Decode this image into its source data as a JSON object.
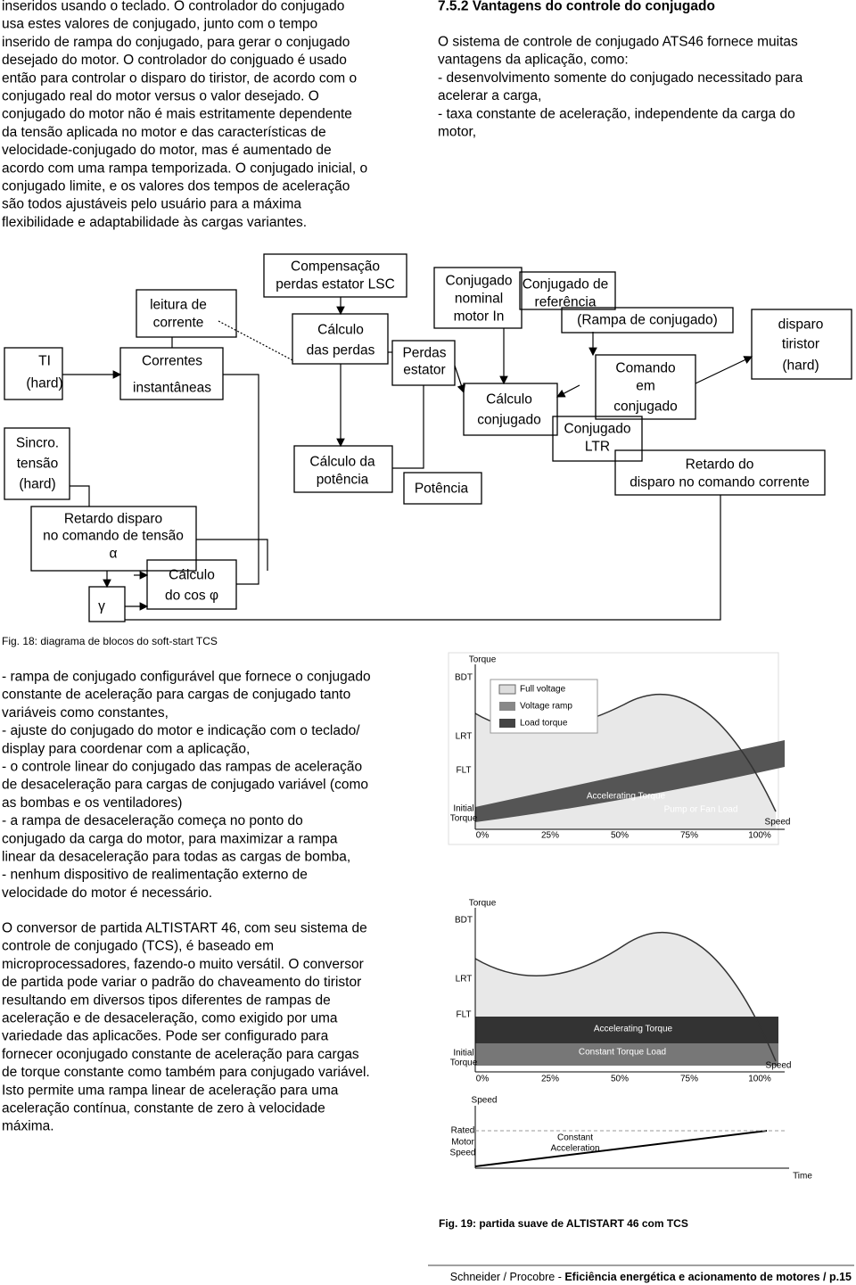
{
  "intro": {
    "lines": [
      "inseridos usando o teclado. O controlador do conjugado",
      "usa estes valores de conjugado, junto com o tempo",
      "inserido de rampa do conjugado, para gerar o conjugado",
      "desejado do motor. O controlador do conjguado é usado",
      "então para controlar o disparo do tiristor, de acordo com o",
      "conjugado real do motor versus o valor desejado. O",
      "conjugado do motor não é mais estritamente dependente",
      "da tensão aplicada no motor e das características de",
      "velocidade-conjugado do motor, mas é aumentado de",
      "acordo com uma rampa temporizada. O conjugado inicial, o",
      "conjugado limite, e os valores dos tempos de aceleração",
      "são todos ajustáveis pelo usuário para a máxima",
      "flexibilidade e adaptabilidade às cargas variantes."
    ]
  },
  "section": {
    "heading": "7.5.2  Vantagens do controle do conjugado",
    "lines": [
      "O sistema de controle de conjugado ATS46 fornece muitas",
      "vantagens da aplicação, como:",
      "- desenvolvimento somente do conjugado necessitado para",
      "acelerar a carga,",
      "- taxa constante de aceleração, independente da carga do",
      "motor,"
    ]
  },
  "diagram": {
    "nodes": [
      {
        "lines": [
          "TI",
          "(hard)"
        ]
      },
      {
        "lines": [
          "Sincro.",
          "tensão",
          "(hard)"
        ]
      },
      {
        "lines": [
          "leitura de",
          "corrente"
        ]
      },
      {
        "lines": [
          "Correntes",
          "instantâneas"
        ]
      },
      {
        "lines": [
          "Compensação",
          "perdas estator LSC"
        ]
      },
      {
        "lines": [
          "Cálculo",
          "das perdas"
        ]
      },
      {
        "lines": [
          "Perdas",
          "estator"
        ]
      },
      {
        "lines": [
          "Conjugado",
          "nominal",
          "motor In"
        ]
      },
      {
        "lines": [
          "Conjugado de",
          "referência"
        ]
      },
      {
        "lines": [
          "(Rampa  de conjugado)"
        ]
      },
      {
        "lines": [
          "disparo",
          "tiristor",
          "(hard)"
        ]
      },
      {
        "lines": [
          "Comando",
          "em",
          "conjugado"
        ]
      },
      {
        "lines": [
          "Cálculo",
          "conjugado"
        ]
      },
      {
        "lines": [
          "Conjugado",
          "LTR"
        ]
      },
      {
        "lines": [
          "Retardo do",
          "disparo no comando corrente"
        ]
      },
      {
        "lines": [
          "Cálculo da",
          "potência"
        ]
      },
      {
        "lines": [
          "Potência"
        ]
      },
      {
        "lines": [
          "Retardo disparo",
          "no comando de tensão",
          "α"
        ]
      },
      {
        "lines": [
          "Cálculo",
          "do cos φ"
        ]
      },
      {
        "lines": [
          "γ"
        ]
      }
    ],
    "caption": "Fig. 18: diagrama de blocos do soft-start TCS"
  },
  "body": {
    "paragraphs": [
      {
        "lines": [
          "- rampa de conjugado configurável que fornece o conjugado",
          "constante de aceleração para cargas de conjugado tanto",
          "variáveis como constantes,",
          "- ajuste do conjugado do motor e indicação com o teclado/",
          "display para coordenar com a aplicação,",
          "- o controle linear do conjugado das rampas de aceleração",
          "de desaceleração para cargas de conjugado variável (como",
          "as bombas e os ventiladores)",
          "- a rampa de desaceleração começa no ponto do",
          "conjugado da carga do motor, para maximizar a rampa",
          "linear da desaceleração para todas as cargas de bomba,",
          "- nenhum dispositivo de realimentação externo de",
          "velocidade do motor é necessário."
        ]
      },
      {
        "lines": [
          "O conversor de partida ALTISTART 46, com seu sistema de",
          "controle de conjugado (TCS), é baseado em",
          "microprocessadores, fazendo-o muito versátil. O conversor",
          "de partida pode variar o padrão do chaveamento do tiristor",
          "resultando em diversos tipos diferentes de rampas de",
          "aceleração e de desaceleração, como exigido por uma",
          "variedade das aplicacões. Pode ser configurado para",
          "fornecer oconjugado constante de aceleração para cargas",
          "de torque constante como também para conjugado variável.",
          "Isto permite uma rampa linear de aceleração para uma",
          "aceleração contínua, constante de zero à velocidade",
          "máxima."
        ]
      }
    ]
  },
  "figure": {
    "charts": [
      {
        "texts": [
          "Torque",
          "BDT",
          "LRT",
          "FLT",
          "Initial",
          "Torque",
          "0%",
          "25%",
          "50%",
          "75%",
          "100%",
          "Speed",
          "Full voltage",
          "Voltage ramp",
          "Load torque",
          "Accelerating Torque",
          "Pump or Fan Load"
        ]
      },
      {
        "texts": [
          "Torque",
          "BDT",
          "LRT",
          "FLT",
          "Initial",
          "Torque",
          "0%",
          "25%",
          "50%",
          "75%",
          "100%",
          "Speed",
          "Accelerating Torque",
          "Constant Torque Load"
        ]
      },
      {
        "texts": [
          "Speed",
          "Rated",
          "Motor",
          "Speed",
          "Constant",
          "Acceleration",
          "Time"
        ]
      }
    ],
    "caption": "Fig. 19: partida suave de ALTISTART 46 com TCS"
  },
  "footer": {
    "source": "Schneider / Procobre - ",
    "title": "Eficiência energética e acionamento de motores / p.15"
  }
}
